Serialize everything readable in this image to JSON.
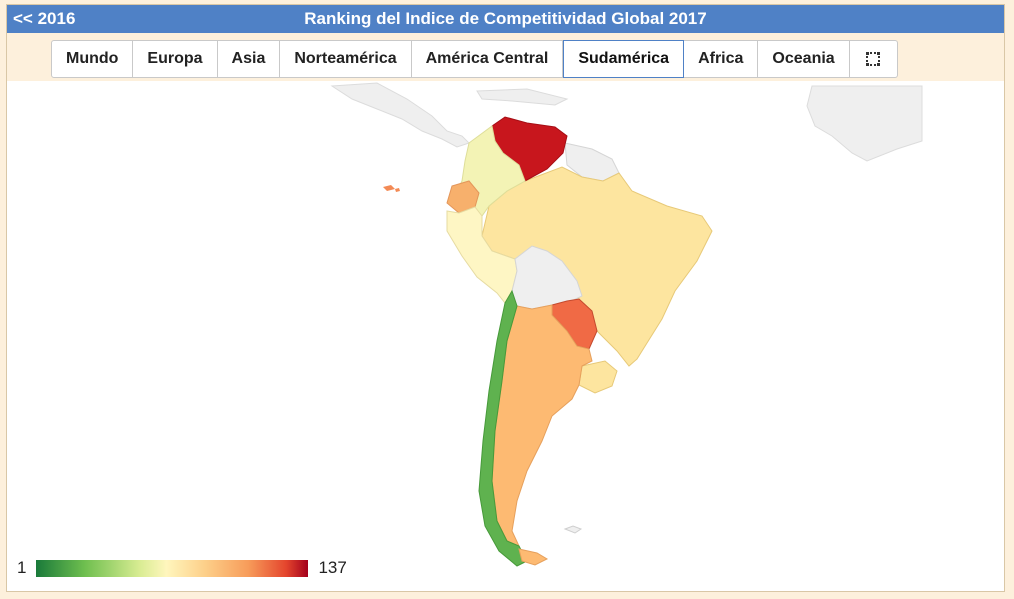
{
  "header": {
    "back_label": "<< 2016",
    "title": "Ranking del Indice de Competitividad Global 2017"
  },
  "tabs": [
    {
      "label": "Mundo",
      "active": false
    },
    {
      "label": "Europa",
      "active": false
    },
    {
      "label": "Asia",
      "active": false
    },
    {
      "label": "Norteamérica",
      "active": false
    },
    {
      "label": "América Central",
      "active": false
    },
    {
      "label": "Sudamérica",
      "active": true
    },
    {
      "label": "Africa",
      "active": false
    },
    {
      "label": "Oceania",
      "active": false
    }
  ],
  "fullscreen_icon": "expand-icon",
  "legend": {
    "min": "1",
    "max": "137"
  },
  "colors": {
    "header": "#4f81c6",
    "background": "#fdf0dc",
    "scale_low": "#1a7a3a",
    "scale_mid": "#fff6bd",
    "scale_high": "#a3001c"
  }
}
